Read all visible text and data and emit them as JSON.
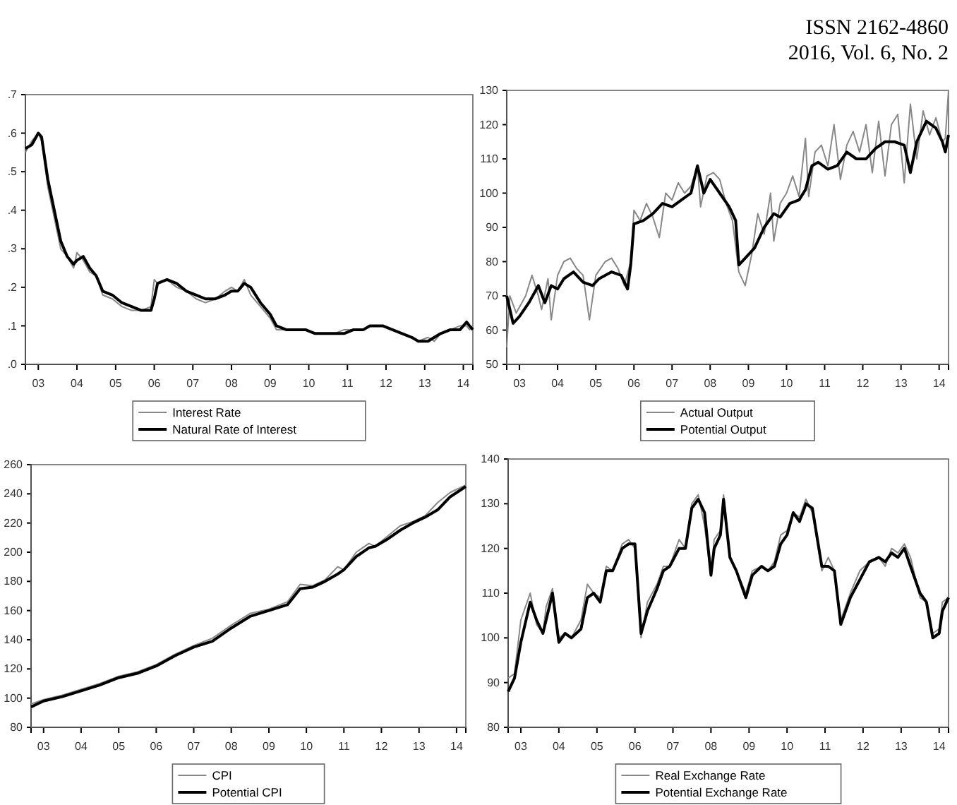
{
  "chart_data": [
    {
      "type": "line",
      "annotations": [
        "ISSN 2162-4860",
        "2016, Vol. 6, No. 2"
      ],
      "legend": "bottom",
      "xlim": [
        "2002-09",
        "2014-04"
      ],
      "xticks": [
        {
          "value": "2003-01",
          "label": "03"
        },
        {
          "value": "2004-01",
          "label": "04"
        },
        {
          "value": "2005-01",
          "label": "05"
        },
        {
          "value": "2006-01",
          "label": "06"
        },
        {
          "value": "2007-01",
          "label": "07"
        },
        {
          "value": "2008-01",
          "label": "08"
        },
        {
          "value": "2009-01",
          "label": "09"
        },
        {
          "value": "2010-01",
          "label": "10"
        },
        {
          "value": "2011-01",
          "label": "11"
        },
        {
          "value": "2012-01",
          "label": "12"
        },
        {
          "value": "2013-01",
          "label": "13"
        },
        {
          "value": "2014-01",
          "label": "14"
        }
      ],
      "ylim": [
        0,
        0.7
      ],
      "yticks": [
        {
          "value": 0,
          "label": ".0"
        },
        {
          "value": 0.1,
          "label": ".1"
        },
        {
          "value": 0.2,
          "label": ".2"
        },
        {
          "value": 0.3,
          "label": ".3"
        },
        {
          "value": 0.4,
          "label": ".4"
        },
        {
          "value": 0.5,
          "label": ".5"
        },
        {
          "value": 0.6,
          "label": ".6"
        },
        {
          "value": 0.7,
          "label": ".7"
        }
      ],
      "series": [
        {
          "name": "Interest Rate",
          "color": "#888888",
          "x": [
            "2002-09",
            "2002-11",
            "2003-01",
            "2003-02",
            "2003-04",
            "2003-06",
            "2003-08",
            "2003-10",
            "2003-12",
            "2004-01",
            "2004-03",
            "2004-05",
            "2004-07",
            "2004-09",
            "2004-12",
            "2005-03",
            "2005-06",
            "2005-09",
            "2005-12",
            "2006-01",
            "2006-02",
            "2006-05",
            "2006-08",
            "2006-11",
            "2007-02",
            "2007-05",
            "2007-08",
            "2007-11",
            "2008-01",
            "2008-03",
            "2008-05",
            "2008-07",
            "2008-10",
            "2009-01",
            "2009-03",
            "2009-06",
            "2009-09",
            "2009-12",
            "2010-03",
            "2010-06",
            "2010-09",
            "2010-12",
            "2011-03",
            "2011-06",
            "2011-08",
            "2011-12",
            "2012-03",
            "2012-06",
            "2012-09",
            "2012-11",
            "2013-02",
            "2013-04",
            "2013-06",
            "2013-09",
            "2013-12",
            "2014-02",
            "2014-03",
            "2014-04"
          ],
          "values": [
            0.55,
            0.58,
            0.6,
            0.58,
            0.46,
            0.38,
            0.3,
            0.28,
            0.25,
            0.29,
            0.27,
            0.24,
            0.23,
            0.18,
            0.17,
            0.15,
            0.14,
            0.14,
            0.15,
            0.22,
            0.21,
            0.22,
            0.2,
            0.19,
            0.17,
            0.16,
            0.17,
            0.19,
            0.2,
            0.19,
            0.22,
            0.18,
            0.15,
            0.12,
            0.09,
            0.09,
            0.09,
            0.09,
            0.08,
            0.08,
            0.08,
            0.09,
            0.09,
            0.09,
            0.1,
            0.1,
            0.09,
            0.08,
            0.07,
            0.06,
            0.07,
            0.06,
            0.08,
            0.09,
            0.1,
            0.1,
            0.09,
            0.1
          ]
        },
        {
          "name": "Natural Rate of Interest",
          "color": "#000000",
          "x": [
            "2002-09",
            "2002-11",
            "2003-01",
            "2003-02",
            "2003-04",
            "2003-06",
            "2003-08",
            "2003-10",
            "2003-12",
            "2004-01",
            "2004-03",
            "2004-05",
            "2004-07",
            "2004-09",
            "2004-12",
            "2005-03",
            "2005-06",
            "2005-09",
            "2005-12",
            "2006-01",
            "2006-02",
            "2006-05",
            "2006-08",
            "2006-11",
            "2007-02",
            "2007-05",
            "2007-08",
            "2007-11",
            "2008-01",
            "2008-03",
            "2008-05",
            "2008-07",
            "2008-10",
            "2009-01",
            "2009-03",
            "2009-06",
            "2009-09",
            "2009-12",
            "2010-03",
            "2010-06",
            "2010-09",
            "2010-12",
            "2011-03",
            "2011-06",
            "2011-08",
            "2011-12",
            "2012-03",
            "2012-06",
            "2012-09",
            "2012-11",
            "2013-02",
            "2013-04",
            "2013-06",
            "2013-09",
            "2013-12",
            "2014-02",
            "2014-03",
            "2014-04"
          ],
          "values": [
            0.56,
            0.57,
            0.6,
            0.59,
            0.48,
            0.4,
            0.32,
            0.28,
            0.26,
            0.27,
            0.28,
            0.25,
            0.23,
            0.19,
            0.18,
            0.16,
            0.15,
            0.14,
            0.14,
            0.17,
            0.21,
            0.22,
            0.21,
            0.19,
            0.18,
            0.17,
            0.17,
            0.18,
            0.19,
            0.19,
            0.21,
            0.2,
            0.16,
            0.13,
            0.1,
            0.09,
            0.09,
            0.09,
            0.08,
            0.08,
            0.08,
            0.08,
            0.09,
            0.09,
            0.1,
            0.1,
            0.09,
            0.08,
            0.07,
            0.06,
            0.06,
            0.07,
            0.08,
            0.09,
            0.09,
            0.11,
            0.1,
            0.09
          ]
        }
      ]
    },
    {
      "type": "line",
      "legend": "bottom",
      "xlim": [
        "2002-09",
        "2014-04"
      ],
      "xticks": [
        {
          "value": "2003-01",
          "label": "03"
        },
        {
          "value": "2004-01",
          "label": "04"
        },
        {
          "value": "2005-01",
          "label": "05"
        },
        {
          "value": "2006-01",
          "label": "06"
        },
        {
          "value": "2007-01",
          "label": "07"
        },
        {
          "value": "2008-01",
          "label": "08"
        },
        {
          "value": "2009-01",
          "label": "09"
        },
        {
          "value": "2010-01",
          "label": "10"
        },
        {
          "value": "2011-01",
          "label": "11"
        },
        {
          "value": "2012-01",
          "label": "12"
        },
        {
          "value": "2013-01",
          "label": "13"
        },
        {
          "value": "2014-01",
          "label": "14"
        }
      ],
      "ylim": [
        50,
        130
      ],
      "yticks": [
        50,
        60,
        70,
        80,
        90,
        100,
        110,
        120,
        130
      ],
      "series": [
        {
          "name": "Actual Output",
          "color": "#888888",
          "x": [
            "2002-09",
            "2002-10",
            "2002-12",
            "2003-03",
            "2003-05",
            "2003-07",
            "2003-08",
            "2003-10",
            "2003-11",
            "2004-01",
            "2004-03",
            "2004-05",
            "2004-07",
            "2004-09",
            "2004-11",
            "2005-01",
            "2005-04",
            "2005-06",
            "2005-08",
            "2005-10",
            "2005-12",
            "2006-01",
            "2006-03",
            "2006-05",
            "2006-07",
            "2006-09",
            "2006-11",
            "2007-01",
            "2007-03",
            "2007-05",
            "2007-07",
            "2007-09",
            "2007-10",
            "2007-12",
            "2008-02",
            "2008-04",
            "2008-06",
            "2008-08",
            "2008-10",
            "2008-12",
            "2009-02",
            "2009-04",
            "2009-06",
            "2009-08",
            "2009-09",
            "2009-11",
            "2010-01",
            "2010-03",
            "2010-05",
            "2010-07",
            "2010-08",
            "2010-10",
            "2010-12",
            "2011-02",
            "2011-04",
            "2011-06",
            "2011-08",
            "2011-10",
            "2011-12",
            "2012-02",
            "2012-04",
            "2012-06",
            "2012-08",
            "2012-10",
            "2012-12",
            "2013-02",
            "2013-04",
            "2013-06",
            "2013-08",
            "2013-10",
            "2013-12",
            "2014-02",
            "2014-03",
            "2014-04"
          ],
          "values": [
            55,
            70,
            65,
            70,
            76,
            70,
            66,
            75,
            63,
            76,
            80,
            81,
            78,
            76,
            63,
            76,
            80,
            81,
            78,
            73,
            80,
            95,
            92,
            97,
            93,
            87,
            100,
            98,
            103,
            100,
            102,
            108,
            96,
            105,
            106,
            104,
            97,
            92,
            77,
            73,
            82,
            94,
            88,
            100,
            86,
            97,
            100,
            105,
            99,
            116,
            99,
            112,
            114,
            108,
            120,
            104,
            114,
            118,
            112,
            120,
            106,
            121,
            105,
            120,
            123,
            103,
            126,
            110,
            124,
            117,
            122,
            115,
            116,
            130
          ]
        },
        {
          "name": "Potential Output",
          "color": "#000000",
          "x": [
            "2002-09",
            "2002-11",
            "2003-01",
            "2003-04",
            "2003-07",
            "2003-09",
            "2003-11",
            "2004-01",
            "2004-03",
            "2004-06",
            "2004-09",
            "2004-12",
            "2005-02",
            "2005-06",
            "2005-09",
            "2005-11",
            "2005-12",
            "2006-01",
            "2006-04",
            "2006-07",
            "2006-10",
            "2007-01",
            "2007-04",
            "2007-07",
            "2007-09",
            "2007-11",
            "2008-01",
            "2008-04",
            "2008-07",
            "2008-09",
            "2008-10",
            "2008-12",
            "2009-03",
            "2009-06",
            "2009-09",
            "2009-11",
            "2010-02",
            "2010-05",
            "2010-07",
            "2010-09",
            "2010-11",
            "2011-02",
            "2011-05",
            "2011-08",
            "2011-11",
            "2012-02",
            "2012-05",
            "2012-08",
            "2012-11",
            "2013-02",
            "2013-04",
            "2013-06",
            "2013-09",
            "2013-12",
            "2014-02",
            "2014-03",
            "2014-04"
          ],
          "values": [
            70,
            62,
            64,
            68,
            73,
            68,
            73,
            72,
            75,
            77,
            74,
            73,
            75,
            77,
            76,
            72,
            79,
            91,
            92,
            94,
            97,
            96,
            98,
            100,
            108,
            100,
            104,
            100,
            96,
            92,
            79,
            81,
            84,
            90,
            94,
            93,
            97,
            98,
            101,
            108,
            109,
            107,
            108,
            112,
            110,
            110,
            113,
            115,
            115,
            114,
            106,
            115,
            121,
            119,
            115,
            112,
            117
          ]
        }
      ]
    },
    {
      "type": "line",
      "legend": "bottom",
      "xlim": [
        "2002-09",
        "2014-04"
      ],
      "xticks": [
        {
          "value": "2003-01",
          "label": "03"
        },
        {
          "value": "2004-01",
          "label": "04"
        },
        {
          "value": "2005-01",
          "label": "05"
        },
        {
          "value": "2006-01",
          "label": "06"
        },
        {
          "value": "2007-01",
          "label": "07"
        },
        {
          "value": "2008-01",
          "label": "08"
        },
        {
          "value": "2009-01",
          "label": "09"
        },
        {
          "value": "2010-01",
          "label": "10"
        },
        {
          "value": "2011-01",
          "label": "11"
        },
        {
          "value": "2012-01",
          "label": "12"
        },
        {
          "value": "2013-01",
          "label": "13"
        },
        {
          "value": "2014-01",
          "label": "14"
        }
      ],
      "ylim": [
        80,
        260
      ],
      "yticks": [
        80,
        100,
        120,
        140,
        160,
        180,
        200,
        220,
        240,
        260
      ],
      "series": [
        {
          "name": "CPI",
          "color": "#888888",
          "x": [
            "2002-09",
            "2003-01",
            "2003-07",
            "2004-01",
            "2004-07",
            "2005-01",
            "2005-07",
            "2006-01",
            "2006-07",
            "2007-01",
            "2007-07",
            "2008-01",
            "2008-07",
            "2009-01",
            "2009-07",
            "2009-11",
            "2010-03",
            "2010-07",
            "2010-11",
            "2011-01",
            "2011-05",
            "2011-09",
            "2011-11",
            "2012-03",
            "2012-07",
            "2012-11",
            "2013-03",
            "2013-07",
            "2013-11",
            "2014-04"
          ],
          "values": [
            96,
            99,
            102,
            106,
            110,
            115,
            118,
            123,
            130,
            136,
            141,
            150,
            158,
            161,
            166,
            178,
            177,
            181,
            190,
            188,
            200,
            206,
            204,
            211,
            218,
            221,
            225,
            234,
            241,
            246
          ]
        },
        {
          "name": "Potential CPI",
          "color": "#000000",
          "x": [
            "2002-09",
            "2003-01",
            "2003-07",
            "2004-01",
            "2004-07",
            "2005-01",
            "2005-07",
            "2006-01",
            "2006-07",
            "2007-01",
            "2007-07",
            "2008-01",
            "2008-07",
            "2009-01",
            "2009-07",
            "2009-11",
            "2010-03",
            "2010-07",
            "2010-11",
            "2011-01",
            "2011-05",
            "2011-09",
            "2011-11",
            "2012-03",
            "2012-07",
            "2012-11",
            "2013-03",
            "2013-07",
            "2013-11",
            "2014-04"
          ],
          "values": [
            94,
            98,
            101,
            105,
            109,
            114,
            117,
            122,
            129,
            135,
            139,
            148,
            156,
            160,
            164,
            175,
            176,
            180,
            185,
            188,
            197,
            203,
            204,
            209,
            215,
            220,
            224,
            229,
            238,
            245
          ]
        }
      ]
    },
    {
      "type": "line",
      "legend": "bottom",
      "xlim": [
        "2002-09",
        "2014-04"
      ],
      "xticks": [
        {
          "value": "2003-01",
          "label": "03"
        },
        {
          "value": "2004-01",
          "label": "04"
        },
        {
          "value": "2005-01",
          "label": "05"
        },
        {
          "value": "2006-01",
          "label": "06"
        },
        {
          "value": "2007-01",
          "label": "07"
        },
        {
          "value": "2008-01",
          "label": "08"
        },
        {
          "value": "2009-01",
          "label": "09"
        },
        {
          "value": "2010-01",
          "label": "10"
        },
        {
          "value": "2011-01",
          "label": "11"
        },
        {
          "value": "2012-01",
          "label": "12"
        },
        {
          "value": "2013-01",
          "label": "13"
        },
        {
          "value": "2014-01",
          "label": "14"
        }
      ],
      "ylim": [
        80,
        140
      ],
      "yticks": [
        80,
        90,
        100,
        110,
        120,
        130,
        140
      ],
      "x": [
        "2002-09",
        "2002-11",
        "2003-01",
        "2003-04",
        "2003-06",
        "2003-08",
        "2003-09",
        "2003-11",
        "2004-01",
        "2004-03",
        "2004-05",
        "2004-08",
        "2004-10",
        "2004-12",
        "2005-02",
        "2005-04",
        "2005-06",
        "2005-09",
        "2005-11",
        "2006-01",
        "2006-03",
        "2006-05",
        "2006-08",
        "2006-10",
        "2006-12",
        "2007-03",
        "2007-05",
        "2007-07",
        "2007-09",
        "2007-11",
        "2008-01",
        "2008-02",
        "2008-04",
        "2008-05",
        "2008-07",
        "2008-09",
        "2008-12",
        "2009-02",
        "2009-05",
        "2009-07",
        "2009-09",
        "2009-11",
        "2010-01",
        "2010-03",
        "2010-05",
        "2010-07",
        "2010-09",
        "2010-12",
        "2011-02",
        "2011-04",
        "2011-06",
        "2011-09",
        "2011-12",
        "2012-03",
        "2012-06",
        "2012-08",
        "2012-10",
        "2012-12",
        "2013-02",
        "2013-04",
        "2013-07",
        "2013-09",
        "2013-11",
        "2014-01",
        "2014-02",
        "2014-04"
      ],
      "series": [
        {
          "name": "Real Exchange Rate",
          "color": "#888888",
          "values": [
            91,
            92,
            104,
            110,
            103,
            101,
            107,
            111,
            100,
            101,
            100,
            104,
            112,
            110,
            109,
            116,
            115,
            121,
            122,
            120,
            100,
            108,
            112,
            116,
            116,
            122,
            120,
            130,
            132,
            125,
            114,
            122,
            124,
            132,
            118,
            115,
            110,
            115,
            116,
            115,
            117,
            123,
            124,
            128,
            127,
            131,
            128,
            115,
            118,
            115,
            104,
            110,
            115,
            117,
            118,
            116,
            120,
            119,
            121,
            118,
            109,
            108,
            101,
            102,
            108,
            109
          ]
        },
        {
          "name": "Potential Exchange Rate",
          "color": "#000000",
          "values": [
            88,
            91,
            99,
            108,
            104,
            101,
            104,
            110,
            99,
            101,
            100,
            102,
            109,
            110,
            108,
            115,
            115,
            120,
            121,
            121,
            101,
            106,
            111,
            115,
            116,
            120,
            120,
            129,
            131,
            128,
            114,
            120,
            123,
            131,
            118,
            115,
            109,
            114,
            116,
            115,
            116,
            121,
            123,
            128,
            126,
            130,
            129,
            116,
            116,
            115,
            103,
            109,
            113,
            117,
            118,
            117,
            119,
            118,
            120,
            116,
            110,
            108,
            100,
            101,
            106,
            109
          ]
        }
      ]
    }
  ]
}
